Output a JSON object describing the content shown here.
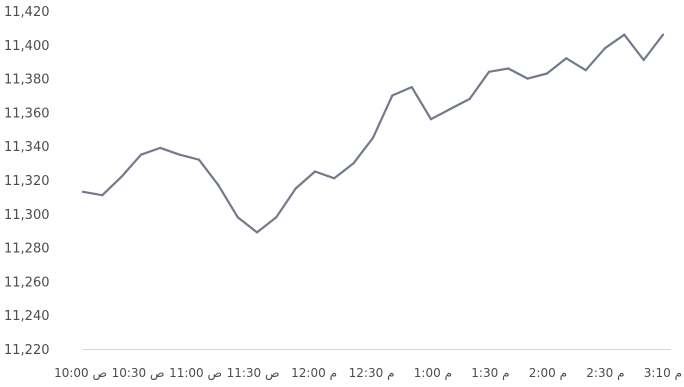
{
  "chart_data": {
    "type": "line",
    "title": "",
    "xlabel": "",
    "ylabel": "",
    "ylim": [
      11220,
      11420
    ],
    "y_ticks": [
      "11,220",
      "11,240",
      "11,260",
      "11,280",
      "11,300",
      "11,320",
      "11,340",
      "11,360",
      "11,380",
      "11,400",
      "11,420"
    ],
    "x_tick_labels": [
      "10:00 ص",
      "10:30 ص",
      "11:00 ص",
      "11:30 ص",
      "12:00 م",
      "12:30 م",
      "1:00 م",
      "1:30 م",
      "2:00 م",
      "2:30 م",
      "3:10 م"
    ],
    "grid": false,
    "line_color": "#727a8b",
    "series": [
      {
        "values": [
          11313,
          11311,
          11322,
          11335,
          11339,
          11335,
          11332,
          11317,
          11298,
          11289,
          11298,
          11315,
          11325,
          11321,
          11330,
          11345,
          11370,
          11375,
          11356,
          11362,
          11368,
          11384,
          11386,
          11380,
          11383,
          11392,
          11385,
          11398,
          11406,
          11391,
          11406
        ]
      }
    ]
  }
}
